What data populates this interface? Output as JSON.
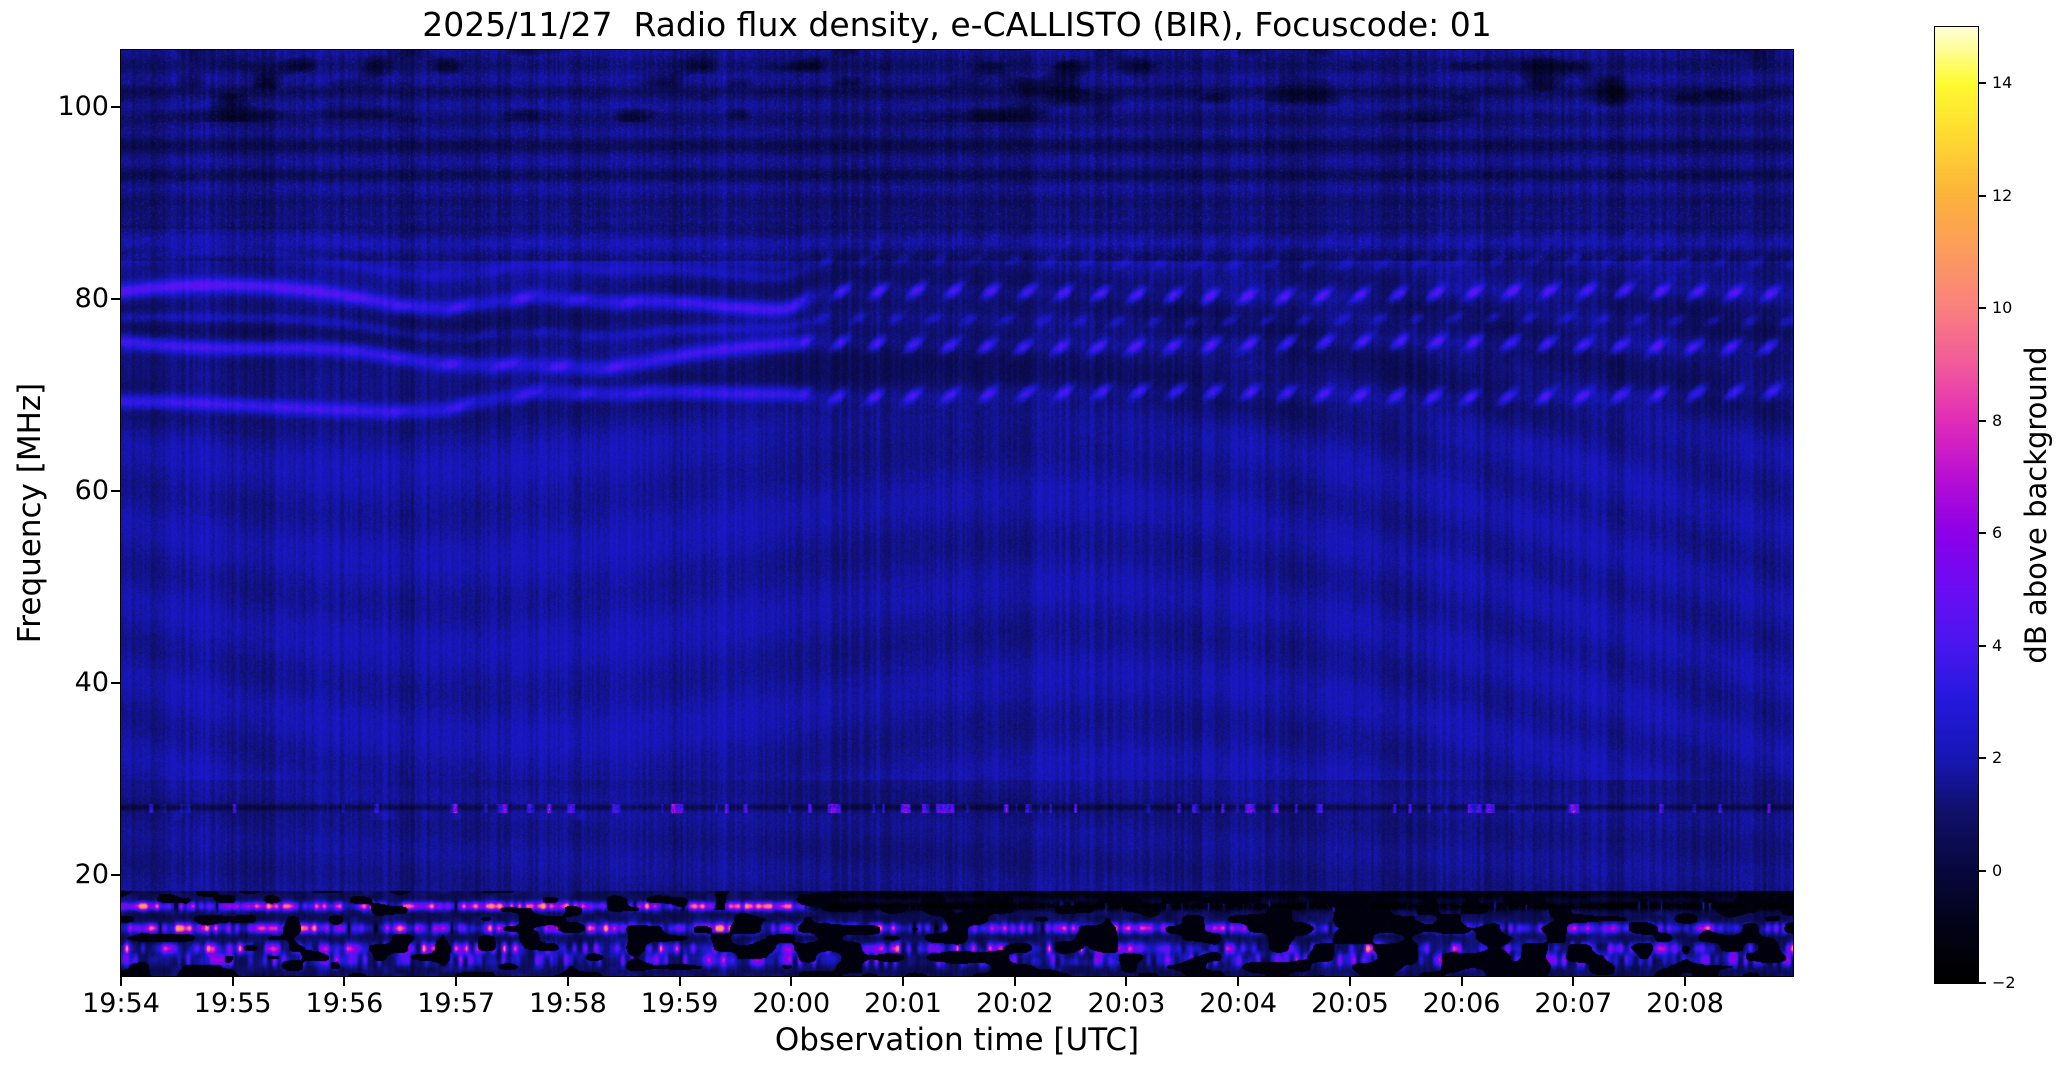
{
  "chart_data": {
    "type": "heatmap",
    "title": "2025/11/27  Radio flux density, e-CALLISTO (BIR), Focuscode: 01",
    "xlabel": "Observation time [UTC]",
    "ylabel": "Frequency [MHz]",
    "x_tick_labels": [
      "19:54",
      "19:55",
      "19:56",
      "19:57",
      "19:58",
      "19:59",
      "20:00",
      "20:01",
      "20:02",
      "20:03",
      "20:04",
      "20:05",
      "20:06",
      "20:07",
      "20:08"
    ],
    "x_start_utc": "19:54:00",
    "x_range_seconds": 898,
    "x_tick_interval_seconds": 60,
    "y_tick_values": [
      20,
      40,
      60,
      80,
      100
    ],
    "y_range_mhz": [
      9.48,
      105.94
    ],
    "grid": false,
    "colorbar": {
      "label": "dB above background",
      "tick_values": [
        14,
        12,
        10,
        8,
        6,
        4,
        2,
        0,
        -2
      ],
      "tick_labels": [
        "14",
        "12",
        "10",
        "8",
        "6",
        "4",
        "2",
        "0",
        "−2"
      ],
      "range_db": [
        -2,
        15
      ],
      "colormap_stops": [
        [
          -2.0,
          "#000000"
        ],
        [
          -1.0,
          "#030318"
        ],
        [
          0.0,
          "#08083e"
        ],
        [
          1.0,
          "#101068"
        ],
        [
          2.0,
          "#1717b4"
        ],
        [
          3.0,
          "#2419dc"
        ],
        [
          4.0,
          "#4a17f0"
        ],
        [
          5.0,
          "#6b0df4"
        ],
        [
          6.0,
          "#8c00e9"
        ],
        [
          7.0,
          "#b90fd4"
        ],
        [
          8.0,
          "#e22db9"
        ],
        [
          9.0,
          "#f25a9c"
        ],
        [
          10.0,
          "#fa8080"
        ],
        [
          11.0,
          "#fc9c5e"
        ],
        [
          12.0,
          "#fcb23c"
        ],
        [
          13.0,
          "#fed832"
        ],
        [
          14.0,
          "#fffb30"
        ],
        [
          15.0,
          "#ffffd8"
        ]
      ]
    },
    "features": {
      "background_noise_db": [
        0.2,
        2.2
      ],
      "fm_band_mhz": [
        84,
        106
      ],
      "interference_bands": {
        "centers_mhz": [
          80.3,
          75.0,
          69.8
        ],
        "faint_offsets_mhz": [
          2.6,
          3.3,
          5.6
        ],
        "peak_db": [
          2.9,
          2.75,
          2.6
        ],
        "sigma_mhz": 0.78,
        "wavy_until_t_s": 360,
        "breakup_window_t_s": [
          140,
          300
        ],
        "stripe_period_s": 20,
        "stripe_pitch_mhz": 5.2
      },
      "cb_band": {
        "dark_line_mhz": 27.1,
        "burst_row_mhz": 27.0,
        "burst_peak_db": 4,
        "bursts_sparse_before_t_s": 170
      },
      "shortwave_rows": {
        "region_top_mhz": 18.4,
        "rows_mhz": [
          16.8,
          14.5,
          12.4,
          11.2
        ],
        "row_peak_db": [
          12.5,
          12.5,
          9.0,
          7.0
        ],
        "top_row_blackout_after_t_s": 372
      }
    }
  }
}
